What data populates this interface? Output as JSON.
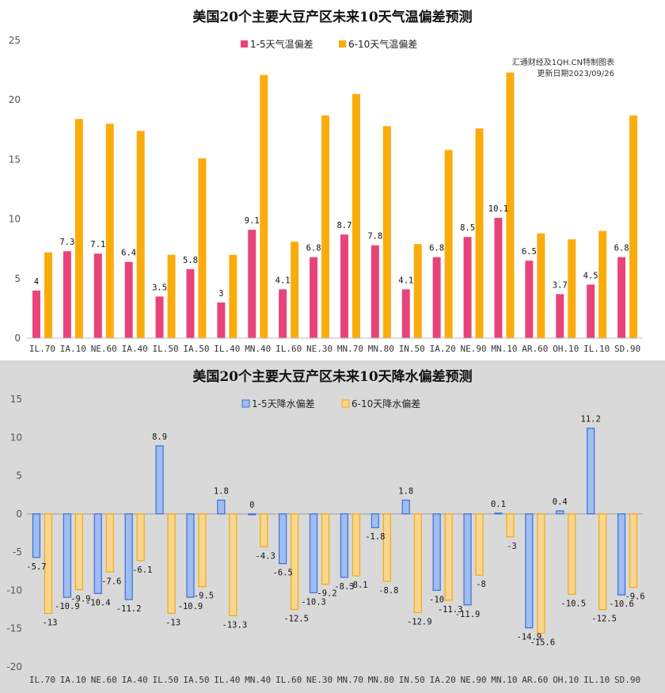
{
  "colors": {
    "temp_s1": "#e8447a",
    "temp_s2": "#fbac0d",
    "prec_s1_fill": "#9fbdf0",
    "prec_s1_stroke": "#3a6fd8",
    "prec_s2_fill": "#f8d690",
    "prec_s2_stroke": "#f3a90f",
    "precip_bg": "#d9d9d9"
  },
  "chart_data": [
    {
      "type": "bar",
      "title": "美国20个主要大豆产区未来10天气温偏差预测",
      "note_lines": [
        "汇通财经及1QH.CN特制图表",
        "更新日期2023/09/26"
      ],
      "categories": [
        "IL.70",
        "IA.10",
        "NE.60",
        "IA.40",
        "IL.50",
        "IA.50",
        "IL.40",
        "MN.40",
        "IL.60",
        "NE.30",
        "MN.70",
        "MN.80",
        "IN.50",
        "IA.20",
        "NE.90",
        "MN.10",
        "AR.60",
        "OH.10",
        "IL.10",
        "SD.90"
      ],
      "series": [
        {
          "name": "1-5天气温偏差",
          "values": [
            4,
            7.3,
            7.1,
            6.4,
            3.5,
            5.8,
            3,
            9.1,
            4.1,
            6.8,
            8.7,
            7.8,
            4.1,
            6.8,
            8.5,
            10.1,
            6.5,
            3.7,
            4.5,
            6.8
          ],
          "labels": true
        },
        {
          "name": "6-10天气温偏差",
          "values": [
            7.2,
            18.4,
            18,
            17.4,
            7,
            15.1,
            7,
            22.1,
            8.1,
            18.7,
            20.5,
            17.8,
            7.9,
            15.8,
            17.6,
            22.3,
            8.8,
            8.3,
            9,
            18.7
          ],
          "labels": false
        }
      ],
      "ylim": [
        0,
        25
      ],
      "yticks": [
        0,
        5,
        10,
        15,
        20,
        25
      ],
      "legend": "top-center",
      "grid": false
    },
    {
      "type": "bar",
      "title": "美国20个主要大豆产区未来10天降水偏差预测",
      "categories": [
        "IL.70",
        "IA.10",
        "NE.60",
        "IA.40",
        "IL.50",
        "IA.50",
        "IL.40",
        "MN.40",
        "IL.60",
        "NE.30",
        "MN.70",
        "MN.80",
        "IN.50",
        "IA.20",
        "NE.90",
        "MN.10",
        "AR.60",
        "OH.10",
        "IL.10",
        "SD.90"
      ],
      "series": [
        {
          "name": "1-5天降水偏差",
          "values": [
            -5.7,
            -10.9,
            -10.4,
            -11.2,
            8.9,
            -10.9,
            1.8,
            0,
            -6.5,
            -10.3,
            -8.3,
            -1.8,
            1.8,
            -10,
            -11.9,
            0.1,
            -14.9,
            0.4,
            11.2,
            -10.6
          ],
          "labels": true
        },
        {
          "name": "6-10天降水偏差",
          "values": [
            -13,
            -9.9,
            -7.6,
            -6.1,
            -13,
            -9.5,
            -13.3,
            -4.3,
            -12.5,
            -9.2,
            -8.1,
            -8.8,
            -12.9,
            -11.3,
            -8,
            -3,
            -15.6,
            -10.5,
            -12.5,
            -9.6
          ],
          "labels": true
        }
      ],
      "ylim": [
        -20,
        15
      ],
      "yticks": [
        -20,
        -15,
        -10,
        -5,
        0,
        5,
        10,
        15
      ],
      "legend": "top-center",
      "grid": false
    }
  ]
}
